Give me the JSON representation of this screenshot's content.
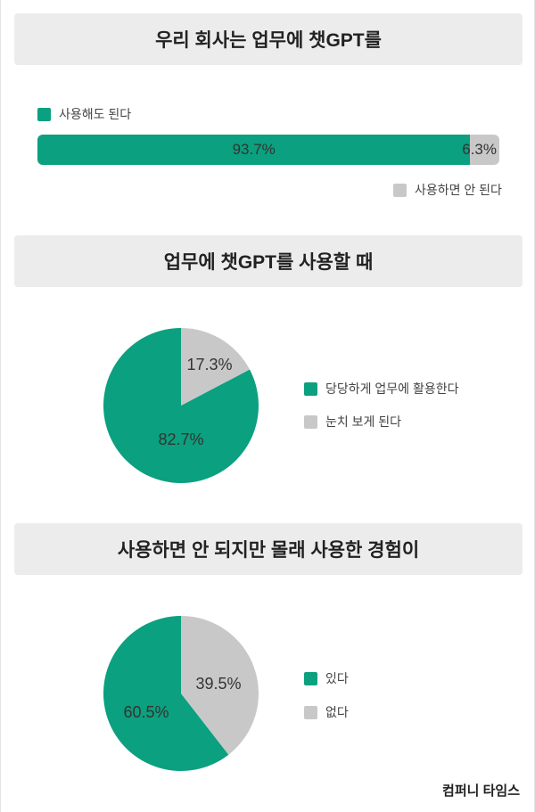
{
  "colors": {
    "primary": "#0ba07f",
    "secondary": "#c8c8c8"
  },
  "chart_data": [
    {
      "type": "bar",
      "orientation": "horizontal-stacked",
      "title": "우리 회사는 업무에 챗GPT를",
      "series": [
        {
          "name": "사용해도 된다",
          "value": 93.7,
          "label": "93.7%"
        },
        {
          "name": "사용하면 안 된다",
          "value": 6.3,
          "label": "6.3%"
        }
      ]
    },
    {
      "type": "pie",
      "title": "업무에 챗GPT를 사용할 때",
      "slices": [
        {
          "name": "당당하게 업무에 활용한다",
          "value": 82.7,
          "label": "82.7%"
        },
        {
          "name": "눈치 보게 된다",
          "value": 17.3,
          "label": "17.3%"
        }
      ]
    },
    {
      "type": "pie",
      "title": "사용하면 안 되지만 몰래 사용한 경험이",
      "slices": [
        {
          "name": "있다",
          "value": 60.5,
          "label": "60.5%"
        },
        {
          "name": "없다",
          "value": 39.5,
          "label": "39.5%"
        }
      ]
    }
  ],
  "source": "컴퍼니 타임스"
}
